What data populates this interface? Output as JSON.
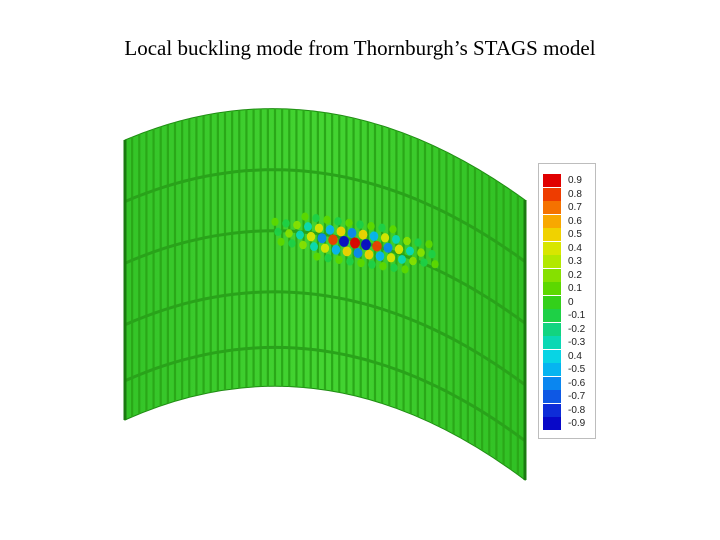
{
  "title": "Local buckling mode from Thornburgh’s STAGS model",
  "legend": {
    "items": [
      {
        "label": "0.9",
        "color": "#e00000"
      },
      {
        "label": "0.8",
        "color": "#ee3c00"
      },
      {
        "label": "0.7",
        "color": "#f57200"
      },
      {
        "label": "0.6",
        "color": "#f8a800"
      },
      {
        "label": "0.5",
        "color": "#f0d200"
      },
      {
        "label": "0.4",
        "color": "#d8e600"
      },
      {
        "label": "0.3",
        "color": "#b2e800"
      },
      {
        "label": "0.2",
        "color": "#86e000"
      },
      {
        "label": "0.1",
        "color": "#5cd800"
      },
      {
        "label": "0",
        "color": "#33d01a"
      },
      {
        "label": "-0.1",
        "color": "#1ed046"
      },
      {
        "label": "-0.2",
        "color": "#12d480"
      },
      {
        "label": "-0.3",
        "color": "#0ad8b4"
      },
      {
        "label": "0.4",
        "color": "#08d4e4"
      },
      {
        "label": "-0.5",
        "color": "#06b4f0"
      },
      {
        "label": "-0.6",
        "color": "#0a86f0"
      },
      {
        "label": "-0.7",
        "color": "#0e58e4"
      },
      {
        "label": "-0.8",
        "color": "#0e2cd8"
      },
      {
        "label": "-0.9",
        "color": "#0808c8"
      }
    ]
  },
  "colors": {
    "shell": "#3cd02c",
    "stiffener": "#2aa818",
    "ring": "#29a31a"
  }
}
